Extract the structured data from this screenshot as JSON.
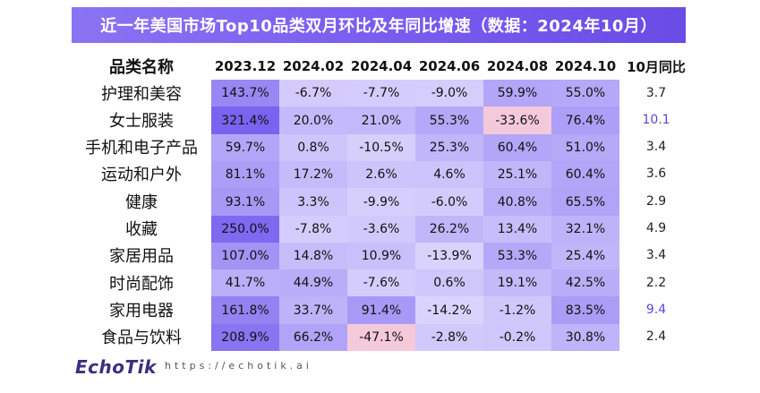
{
  "title": "近一年美国市场Top10品类双月环比及年同比增速（数据：2024年10月）",
  "category_header": "品类名称",
  "yoy_header": "10月同比",
  "colors": {
    "title_bar": "#7a5ff0",
    "yoy_highlight": "#5a47d6",
    "yoy_normal": "#222222",
    "positive_max": "#7a63f0",
    "positive_min": "#ece8ff",
    "negative": "#f4c9da"
  },
  "chart_data": {
    "type": "heatmap",
    "title": "近一年美国市场Top10品类双月环比及年同比增速（数据：2024年10月）",
    "columns": [
      "2023.12",
      "2024.02",
      "2024.04",
      "2024.06",
      "2024.08",
      "2024.10"
    ],
    "rows": [
      "护理和美容",
      "女士服装",
      "手机和电子产品",
      "运动和户外",
      "健康",
      "收藏",
      "家居用品",
      "时尚配饰",
      "家用电器",
      "食品与饮料"
    ],
    "values": [
      [
        143.7,
        -6.7,
        -7.7,
        -9.0,
        59.9,
        55.0
      ],
      [
        321.4,
        20.0,
        21.0,
        55.3,
        -33.6,
        76.4
      ],
      [
        59.7,
        0.8,
        -10.5,
        25.3,
        60.4,
        51.0
      ],
      [
        81.1,
        17.2,
        2.6,
        4.6,
        25.1,
        60.4
      ],
      [
        93.1,
        3.3,
        -9.9,
        -6.0,
        40.8,
        65.5
      ],
      [
        250.0,
        -7.8,
        -3.6,
        26.2,
        13.4,
        32.1
      ],
      [
        107.0,
        14.8,
        10.9,
        -13.9,
        53.3,
        25.4
      ],
      [
        41.7,
        44.9,
        -7.6,
        0.6,
        19.1,
        42.5
      ],
      [
        161.8,
        33.7,
        91.4,
        -14.2,
        -1.2,
        83.5
      ],
      [
        208.9,
        66.2,
        -47.1,
        -2.8,
        -0.2,
        30.8
      ]
    ],
    "value_labels": [
      [
        "143.7%",
        "-6.7%",
        "-7.7%",
        "-9.0%",
        "59.9%",
        "55.0%"
      ],
      [
        "321.4%",
        "20.0%",
        "21.0%",
        "55.3%",
        "-33.6%",
        "76.4%"
      ],
      [
        "59.7%",
        "0.8%",
        "-10.5%",
        "25.3%",
        "60.4%",
        "51.0%"
      ],
      [
        "81.1%",
        "17.2%",
        "2.6%",
        "4.6%",
        "25.1%",
        "60.4%"
      ],
      [
        "93.1%",
        "3.3%",
        "-9.9%",
        "-6.0%",
        "40.8%",
        "65.5%"
      ],
      [
        "250.0%",
        "-7.8%",
        "-3.6%",
        "26.2%",
        "13.4%",
        "32.1%"
      ],
      [
        "107.0%",
        "14.8%",
        "10.9%",
        "-13.9%",
        "53.3%",
        "25.4%"
      ],
      [
        "41.7%",
        "44.9%",
        "-7.6%",
        "0.6%",
        "19.1%",
        "42.5%"
      ],
      [
        "161.8%",
        "33.7%",
        "91.4%",
        "-14.2%",
        "-1.2%",
        "83.5%"
      ],
      [
        "208.9%",
        "66.2%",
        "-47.1%",
        "-2.8%",
        "-0.2%",
        "30.8%"
      ]
    ],
    "yoy": [
      "3.7",
      "10.1",
      "3.4",
      "3.6",
      "2.9",
      "4.9",
      "3.4",
      "2.2",
      "9.4",
      "2.4"
    ],
    "yoy_highlighted": [
      false,
      true,
      false,
      false,
      false,
      false,
      false,
      false,
      true,
      false
    ]
  },
  "footer": {
    "logo": "EchoTik",
    "url": "https://echotik.ai"
  }
}
